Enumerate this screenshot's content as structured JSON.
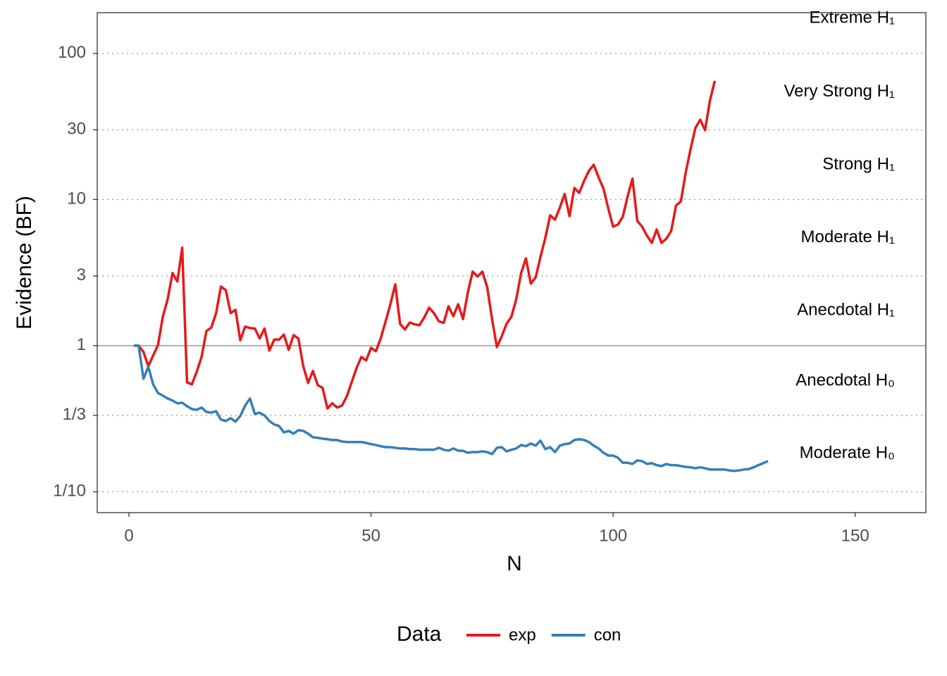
{
  "chart_data": {
    "type": "line",
    "xlabel": "N",
    "ylabel": "Evidence (BF)",
    "xlim": [
      -6.55,
      164.6
    ],
    "xticks": [
      0,
      50,
      100,
      150
    ],
    "ylim": [
      0.072,
      190
    ],
    "ylog": true,
    "yticks": [
      {
        "value": 0.1,
        "label": "1/10"
      },
      {
        "value": 0.3333,
        "label": "1/3"
      },
      1,
      3,
      10,
      30,
      100
    ],
    "grid": true,
    "hline": 1,
    "legend_title": "Data",
    "legend": "bottom",
    "annotations": [
      {
        "text": "Extreme H₁",
        "y": 174
      },
      {
        "text": "Very Strong H₁",
        "y": 54.3
      },
      {
        "text": "Strong H₁",
        "y": 17.3
      },
      {
        "text": "Moderate H₁",
        "y": 5.46
      },
      {
        "text": "Anecdotal H₁",
        "y": 1.74
      },
      {
        "text": "Anecdotal H₀",
        "y": 0.574
      },
      {
        "text": "Moderate H₀",
        "y": 0.183
      }
    ],
    "series": [
      {
        "name": "exp",
        "color": "#e41a1c",
        "x": [
          1,
          2,
          3,
          4,
          5,
          6,
          7,
          8,
          9,
          10,
          11,
          12,
          13,
          14,
          15,
          16,
          17,
          18,
          19,
          20,
          21,
          22,
          23,
          24,
          25,
          26,
          27,
          28,
          29,
          30,
          31,
          32,
          33,
          34,
          35,
          36,
          37,
          38,
          39,
          40,
          41,
          42,
          43,
          44,
          45,
          46,
          47,
          48,
          49,
          50,
          51,
          52,
          53,
          54,
          55,
          56,
          57,
          58,
          59,
          60,
          61,
          62,
          63,
          64,
          65,
          66,
          67,
          68,
          69,
          70,
          71,
          72,
          73,
          74,
          75,
          76,
          77,
          78,
          79,
          80,
          81,
          82,
          83,
          84,
          85,
          86,
          87,
          88,
          89,
          90,
          91,
          92,
          93,
          94,
          95,
          96,
          97,
          98,
          99,
          100,
          101,
          102,
          103,
          104,
          105,
          106,
          107,
          108,
          109,
          110,
          111,
          112,
          113,
          114,
          115,
          116,
          117,
          118,
          119,
          120,
          121
        ],
        "values": [
          1,
          1,
          0.905,
          0.725,
          0.856,
          1.01,
          1.58,
          2.08,
          3.14,
          2.75,
          4.68,
          0.561,
          0.543,
          0.663,
          0.837,
          1.26,
          1.33,
          1.67,
          2.54,
          2.4,
          1.67,
          1.76,
          1.09,
          1.35,
          1.32,
          1.31,
          1.12,
          1.31,
          0.925,
          1.1,
          1.1,
          1.19,
          0.936,
          1.18,
          1.12,
          0.725,
          0.556,
          0.671,
          0.537,
          0.514,
          0.372,
          0.403,
          0.377,
          0.389,
          0.45,
          0.561,
          0.701,
          0.837,
          0.792,
          0.967,
          0.915,
          1.12,
          1.46,
          1.92,
          2.63,
          1.41,
          1.29,
          1.44,
          1.4,
          1.38,
          1.56,
          1.82,
          1.67,
          1.47,
          1.43,
          1.86,
          1.59,
          1.92,
          1.52,
          2.32,
          3.21,
          2.97,
          3.21,
          2.51,
          1.52,
          0.978,
          1.16,
          1.41,
          1.58,
          2.08,
          3.14,
          3.96,
          2.66,
          2.93,
          4.05,
          5.46,
          7.79,
          7.29,
          8.8,
          10.9,
          7.7,
          12,
          11.1,
          13.4,
          15.7,
          17.3,
          14.2,
          11.9,
          8.71,
          6.52,
          6.74,
          7.62,
          10.5,
          13.9,
          7.13,
          6.52,
          5.65,
          5.05,
          6.24,
          5.05,
          5.4,
          6.1,
          9.1,
          9.72,
          15.3,
          22.1,
          30.9,
          35.2,
          29.8,
          47.5,
          64.9
        ]
      },
      {
        "name": "con",
        "color": "#377eb8",
        "x": [
          1,
          2,
          3,
          4,
          5,
          6,
          7,
          8,
          9,
          10,
          11,
          12,
          13,
          14,
          15,
          16,
          17,
          18,
          19,
          20,
          21,
          22,
          23,
          24,
          25,
          26,
          27,
          28,
          29,
          30,
          31,
          32,
          33,
          34,
          35,
          36,
          37,
          38,
          39,
          40,
          41,
          42,
          43,
          44,
          45,
          46,
          47,
          48,
          49,
          50,
          51,
          52,
          53,
          54,
          55,
          56,
          57,
          58,
          59,
          60,
          61,
          62,
          63,
          64,
          65,
          66,
          67,
          68,
          69,
          70,
          71,
          72,
          73,
          74,
          75,
          76,
          77,
          78,
          79,
          80,
          81,
          82,
          83,
          84,
          85,
          86,
          87,
          88,
          89,
          90,
          91,
          92,
          93,
          94,
          95,
          96,
          97,
          98,
          99,
          100,
          101,
          102,
          103,
          104,
          105,
          106,
          107,
          108,
          109,
          110,
          111,
          112,
          113,
          114,
          115,
          116,
          117,
          118,
          119,
          120,
          121,
          122,
          123,
          124,
          125,
          126,
          127,
          128,
          129,
          130,
          131,
          132
        ],
        "values": [
          1,
          1,
          0.594,
          0.717,
          0.543,
          0.475,
          0.455,
          0.435,
          0.421,
          0.403,
          0.407,
          0.385,
          0.368,
          0.364,
          0.377,
          0.352,
          0.348,
          0.356,
          0.312,
          0.305,
          0.319,
          0.302,
          0.33,
          0.389,
          0.435,
          0.341,
          0.348,
          0.333,
          0.305,
          0.289,
          0.282,
          0.255,
          0.261,
          0.25,
          0.264,
          0.261,
          0.25,
          0.236,
          0.234,
          0.231,
          0.229,
          0.226,
          0.226,
          0.221,
          0.219,
          0.219,
          0.219,
          0.219,
          0.216,
          0.212,
          0.209,
          0.205,
          0.202,
          0.202,
          0.2,
          0.198,
          0.198,
          0.196,
          0.196,
          0.194,
          0.194,
          0.194,
          0.194,
          0.2,
          0.194,
          0.191,
          0.198,
          0.191,
          0.191,
          0.185,
          0.187,
          0.187,
          0.189,
          0.187,
          0.181,
          0.2,
          0.202,
          0.189,
          0.194,
          0.198,
          0.209,
          0.205,
          0.214,
          0.207,
          0.224,
          0.196,
          0.202,
          0.187,
          0.207,
          0.212,
          0.214,
          0.226,
          0.229,
          0.226,
          0.219,
          0.207,
          0.198,
          0.185,
          0.177,
          0.177,
          0.171,
          0.158,
          0.158,
          0.155,
          0.164,
          0.162,
          0.155,
          0.157,
          0.152,
          0.15,
          0.155,
          0.152,
          0.152,
          0.15,
          0.148,
          0.147,
          0.145,
          0.147,
          0.145,
          0.142,
          0.142,
          0.142,
          0.142,
          0.14,
          0.139,
          0.14,
          0.142,
          0.143,
          0.147,
          0.152,
          0.157,
          0.162
        ]
      }
    ]
  }
}
